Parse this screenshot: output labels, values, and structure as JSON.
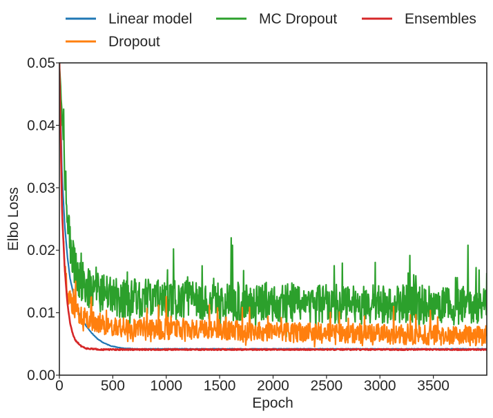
{
  "chart_data": {
    "type": "line",
    "title": "",
    "xlabel": "Epoch",
    "ylabel": "Elbo Loss",
    "xlim": [
      0,
      4000
    ],
    "ylim": [
      0,
      0.05
    ],
    "xticks": [
      0,
      500,
      1000,
      1500,
      2000,
      2500,
      3000,
      3500
    ],
    "xtick_labels": [
      "0",
      "500",
      "1000",
      "1500",
      "2000",
      "2500",
      "3000",
      "3500"
    ],
    "yticks": [
      0,
      0.01,
      0.02,
      0.03,
      0.04,
      0.05
    ],
    "ytick_labels": [
      "0.00",
      "0.01",
      "0.02",
      "0.03",
      "0.04",
      "0.05"
    ],
    "grid": false,
    "legend_position": "top, above plot",
    "series": [
      {
        "name": "Linear model",
        "color": "#1f77b4",
        "x": [
          0,
          25,
          50,
          75,
          100,
          150,
          200,
          250,
          300,
          350,
          400,
          450,
          500,
          600,
          700,
          800,
          1000,
          1500,
          2000,
          2500,
          3000,
          3500,
          4000
        ],
        "y": [
          0.05,
          0.032,
          0.024,
          0.019,
          0.0155,
          0.0115,
          0.0092,
          0.0079,
          0.0068,
          0.0059,
          0.0053,
          0.0049,
          0.0046,
          0.0043,
          0.0042,
          0.0042,
          0.0042,
          0.0042,
          0.0042,
          0.0042,
          0.0042,
          0.0042,
          0.0042
        ]
      },
      {
        "name": "Dropout",
        "color": "#ff7f0e",
        "x": [
          0,
          25,
          50,
          75,
          100,
          150,
          200,
          300,
          400,
          500,
          1000,
          1500,
          2000,
          2500,
          3000,
          3500,
          4000
        ],
        "y": [
          0.05,
          0.026,
          0.018,
          0.014,
          0.012,
          0.0105,
          0.0095,
          0.0088,
          0.0082,
          0.0078,
          0.0073,
          0.0072,
          0.007,
          0.0068,
          0.0066,
          0.0064,
          0.0063
        ]
      },
      {
        "name": "MC Dropout",
        "color": "#2ca02c",
        "x": [
          0,
          25,
          50,
          75,
          100,
          150,
          200,
          300,
          400,
          500,
          1000,
          1500,
          2000,
          2500,
          3000,
          3500,
          4000
        ],
        "y": [
          0.05,
          0.042,
          0.033,
          0.026,
          0.021,
          0.017,
          0.015,
          0.0135,
          0.013,
          0.0125,
          0.012,
          0.0118,
          0.0116,
          0.0115,
          0.0114,
          0.0113,
          0.0112
        ]
      },
      {
        "name": "Ensembles",
        "color": "#d62728",
        "x": [
          0,
          25,
          50,
          75,
          100,
          125,
          150,
          200,
          250,
          300,
          400,
          500,
          1000,
          1500,
          2000,
          2500,
          3000,
          3500,
          4000
        ],
        "y": [
          0.05,
          0.026,
          0.017,
          0.0115,
          0.0083,
          0.0066,
          0.0056,
          0.0047,
          0.0043,
          0.0042,
          0.0041,
          0.0041,
          0.0041,
          0.0041,
          0.0041,
          0.0041,
          0.0041,
          0.0041,
          0.0041
        ]
      }
    ]
  }
}
